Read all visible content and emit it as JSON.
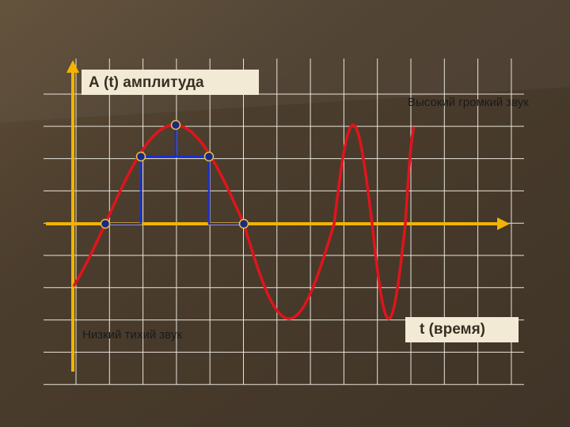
{
  "labels": {
    "amplitude_axis": "А (t) амплитуда",
    "time_axis": "t (время)",
    "high_loud": "Высокий громкий звук",
    "low_quiet": "Низкий тихий звук"
  }
}
